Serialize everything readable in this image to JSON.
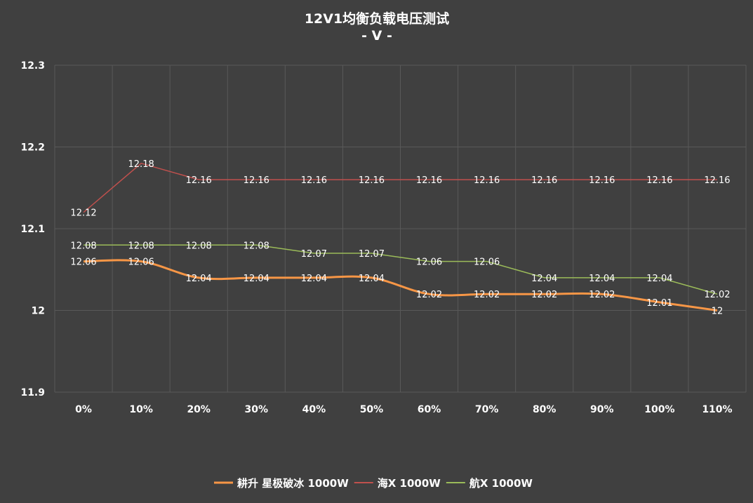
{
  "chart_data": {
    "type": "line",
    "title": "12V1均衡负载电压测试",
    "subtitle": "- V -",
    "xlabel": "",
    "ylabel": "",
    "categories": [
      "0%",
      "10%",
      "20%",
      "30%",
      "40%",
      "50%",
      "60%",
      "70%",
      "80%",
      "90%",
      "100%",
      "110%"
    ],
    "ylim": [
      11.9,
      12.3
    ],
    "yticks": [
      "12.3",
      "12.2",
      "12.1",
      "12",
      "11.9"
    ],
    "grid": true,
    "legend_position": "bottom",
    "series": [
      {
        "name": "耕升 星极破冰 1000W",
        "color": "#F79646",
        "smooth": true,
        "values": [
          12.06,
          12.06,
          12.04,
          12.04,
          12.04,
          12.04,
          12.02,
          12.02,
          12.02,
          12.02,
          12.01,
          12
        ]
      },
      {
        "name": "海X 1000W",
        "color": "#C0504D",
        "smooth": false,
        "values": [
          12.12,
          12.18,
          12.16,
          12.16,
          12.16,
          12.16,
          12.16,
          12.16,
          12.16,
          12.16,
          12.16,
          12.16
        ]
      },
      {
        "name": "航X 1000W",
        "color": "#9BBB59",
        "smooth": false,
        "values": [
          12.08,
          12.08,
          12.08,
          12.08,
          12.07,
          12.07,
          12.06,
          12.06,
          12.04,
          12.04,
          12.04,
          12.02
        ]
      }
    ]
  }
}
